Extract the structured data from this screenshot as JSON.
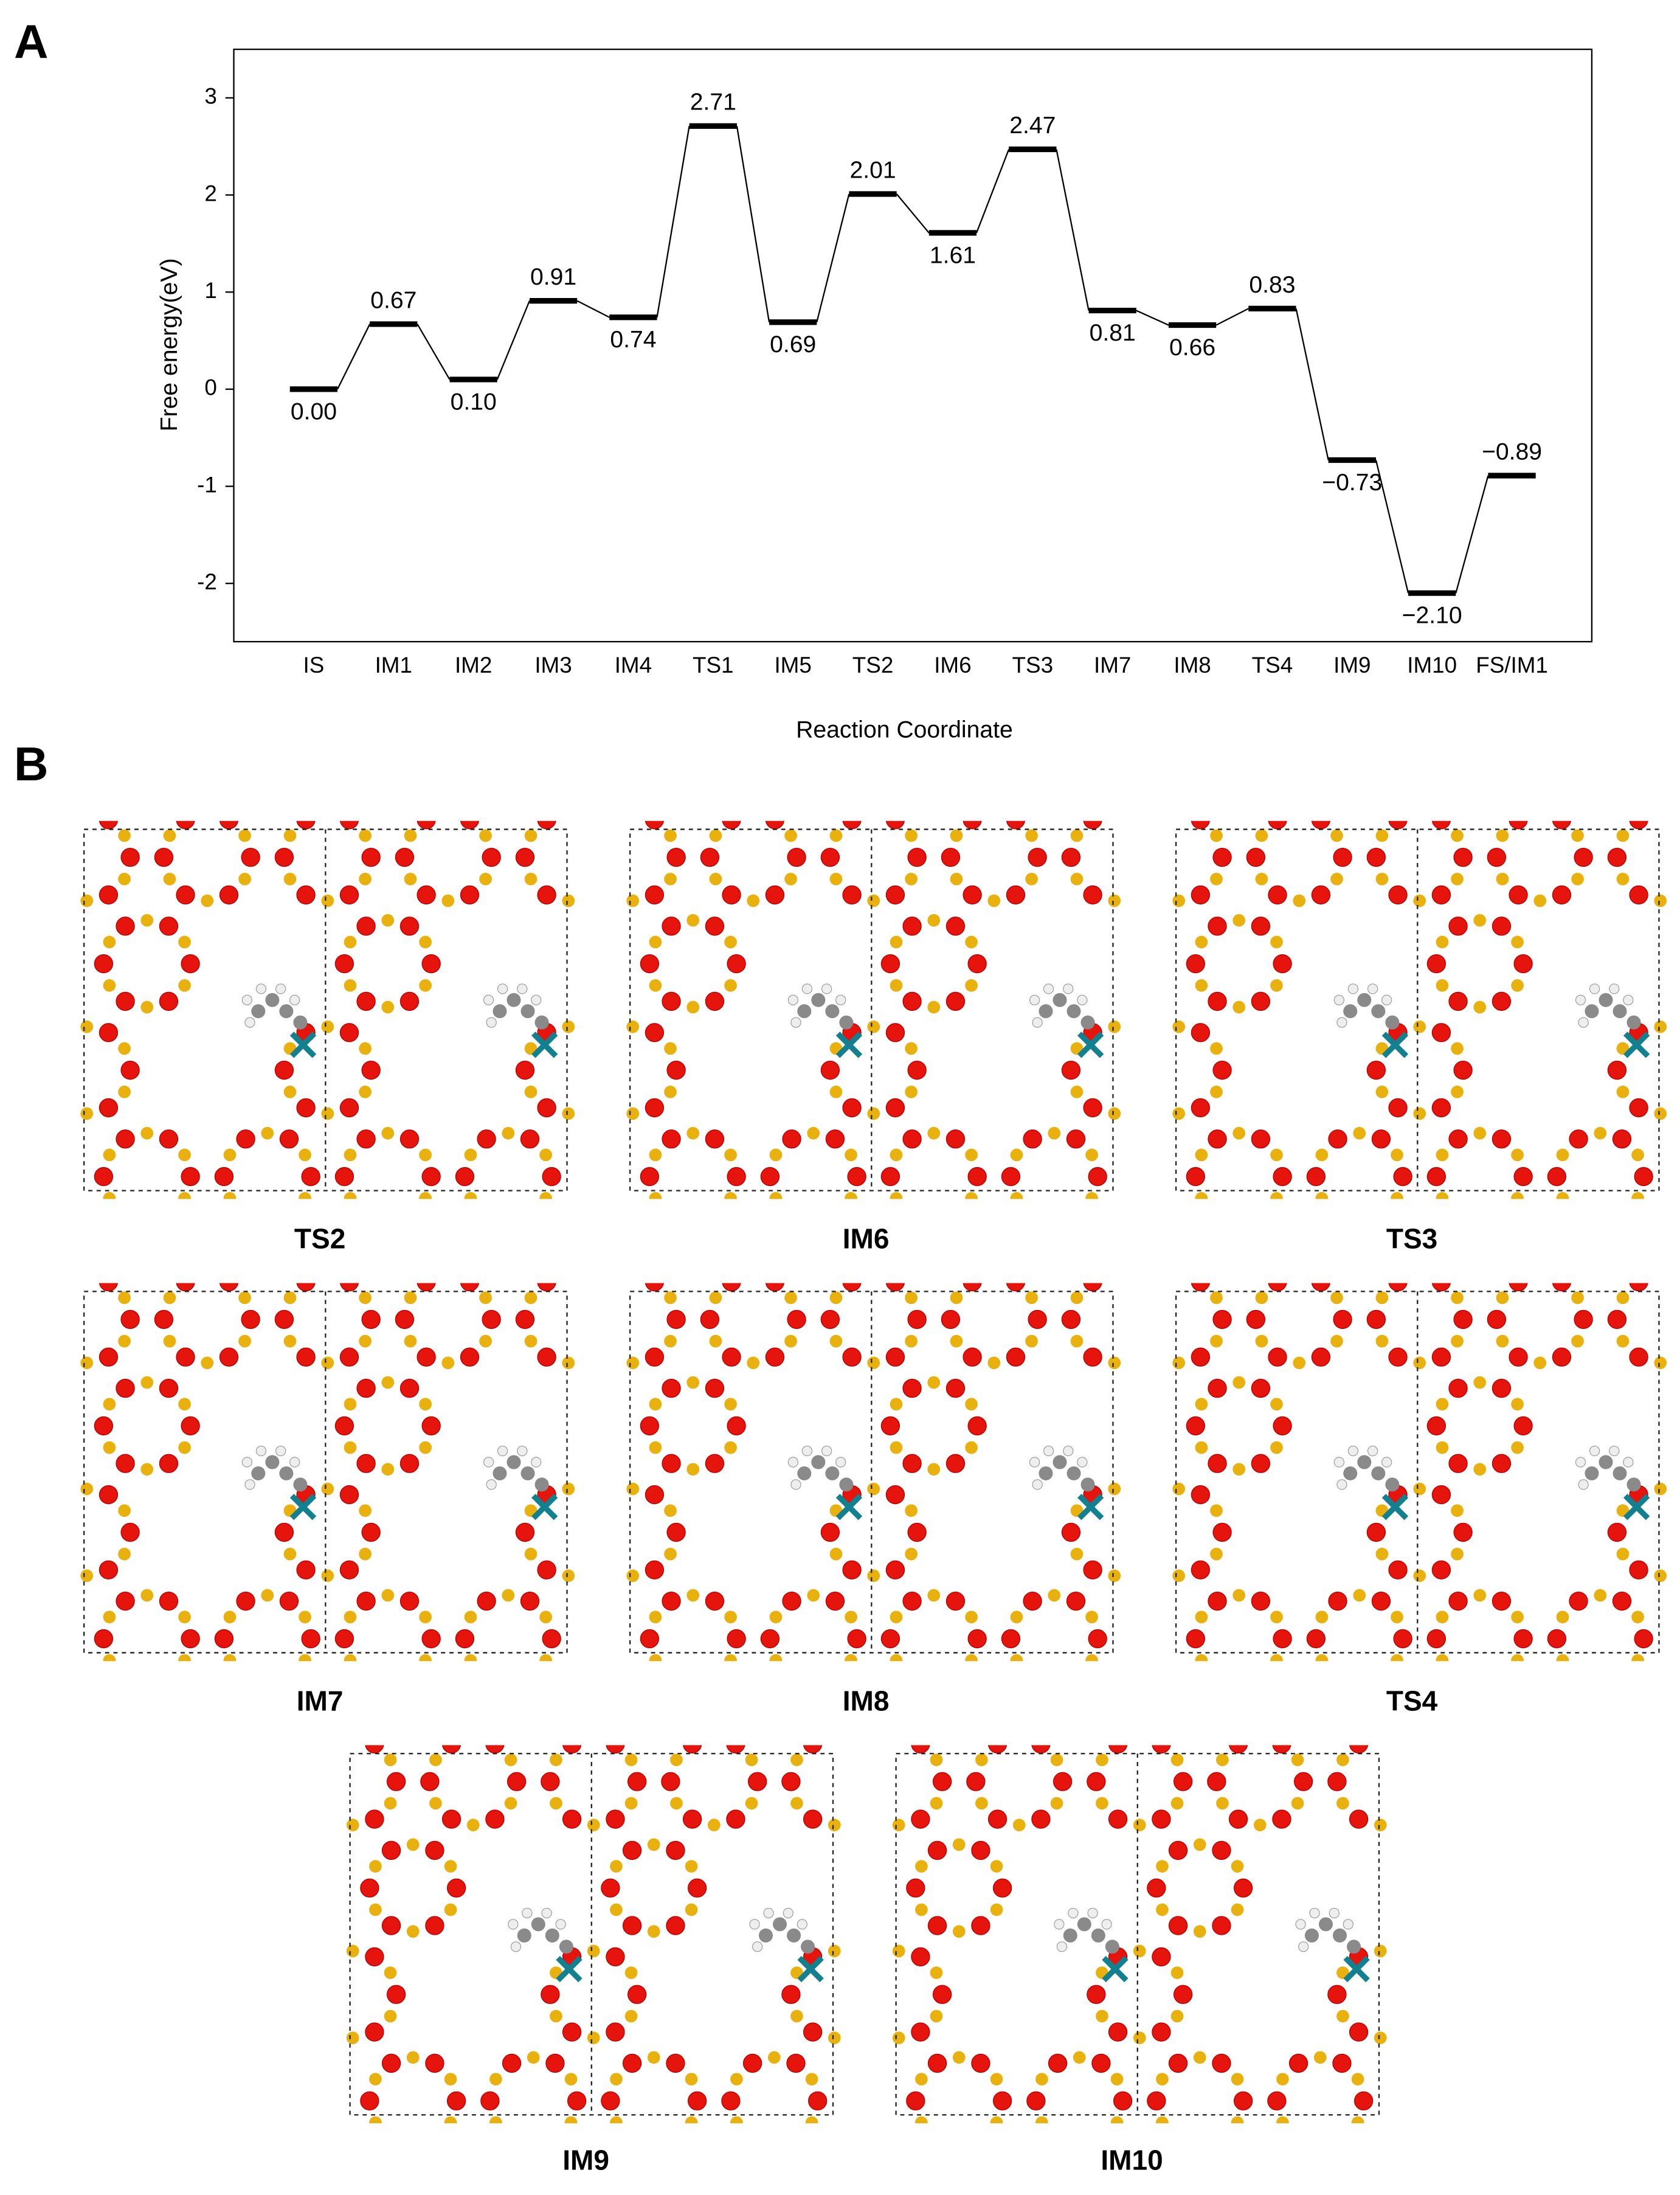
{
  "panel_labels": [
    "A",
    "B"
  ],
  "chart_data": {
    "type": "energy",
    "y_label": "Free energy(eV)",
    "x_label": "Reaction Coordinate",
    "categories": [
      "IS",
      "IM1",
      "IM2",
      "IM3",
      "IM4",
      "TS1",
      "IM5",
      "TS2",
      "IM6",
      "TS3",
      "IM7",
      "IM8",
      "TS4",
      "IM9",
      "IM10",
      "FS/IM1"
    ],
    "values": [
      0.0,
      0.67,
      0.1,
      0.91,
      0.74,
      2.71,
      0.69,
      2.01,
      1.61,
      2.47,
      0.81,
      0.66,
      0.83,
      -0.73,
      -2.1,
      -0.89
    ],
    "value_labels": [
      "0.00",
      "0.67",
      "0.10",
      "0.91",
      "0.74",
      "2.71",
      "0.69",
      "2.01",
      "1.61",
      "2.47",
      "0.81",
      "0.66",
      "0.83",
      "−0.73",
      "−2.10",
      "−0.89"
    ],
    "color": "#000000",
    "ylim": [
      -2.6,
      3.5
    ],
    "yticks": [
      -2,
      -1,
      0,
      1,
      2,
      3
    ]
  },
  "structures": [
    {
      "label": "TS2"
    },
    {
      "label": "IM6"
    },
    {
      "label": "TS3"
    },
    {
      "label": "IM7"
    },
    {
      "label": "IM8"
    },
    {
      "label": "TS4"
    },
    {
      "label": "IM9"
    },
    {
      "label": "IM10"
    }
  ]
}
